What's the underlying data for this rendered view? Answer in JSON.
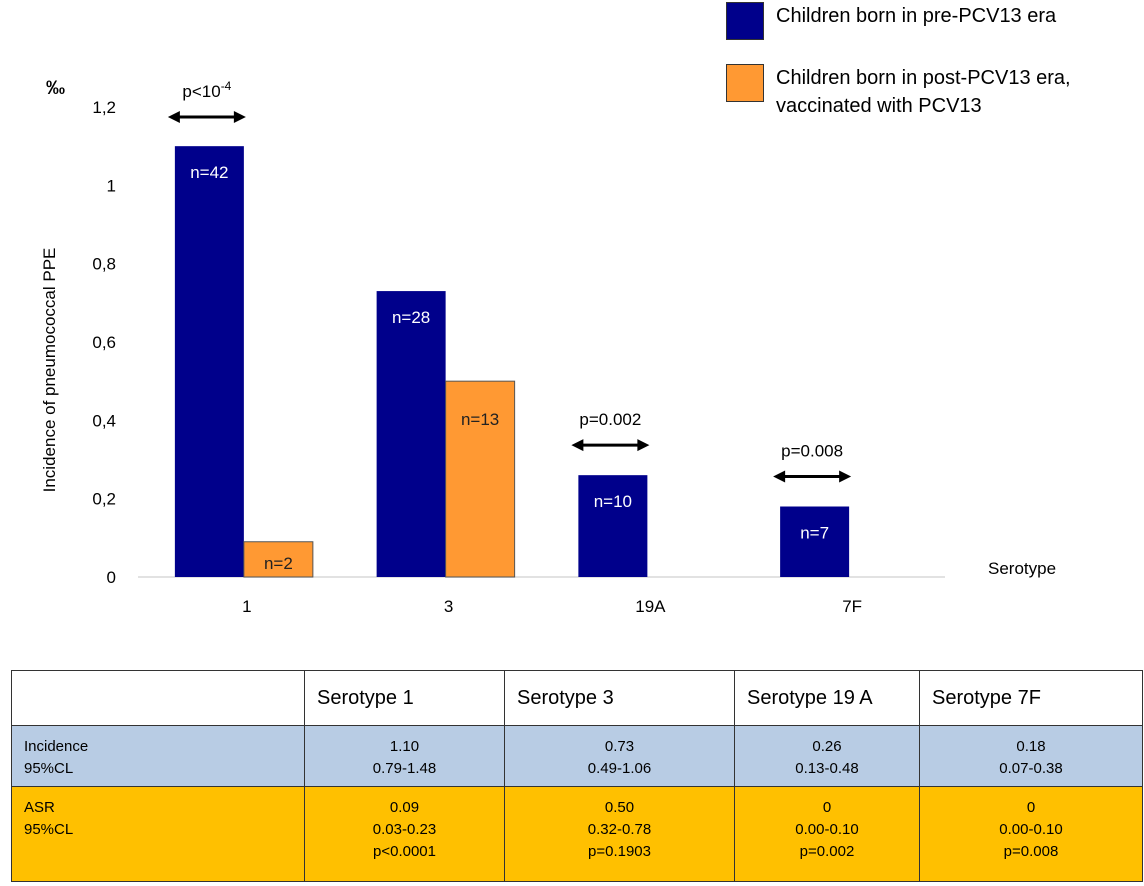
{
  "chart_data": {
    "type": "bar",
    "ylabel": "Incidence of pneumococcal PPE",
    "yunit": "‰",
    "xlabel": "Serotype",
    "ylim": [
      0,
      1.2
    ],
    "yticks": [
      {
        "value": 0,
        "label": "0"
      },
      {
        "value": 0.2,
        "label": "0,2"
      },
      {
        "value": 0.4,
        "label": "0,4"
      },
      {
        "value": 0.6,
        "label": "0,6"
      },
      {
        "value": 0.8,
        "label": "0,8"
      },
      {
        "value": 1,
        "label": "1"
      },
      {
        "value": 1.2,
        "label": "1,2"
      }
    ],
    "categories": [
      "1",
      "3",
      "19A",
      "7F"
    ],
    "series": [
      {
        "name": "Children born in pre-PCV13 era",
        "color": "#00008b",
        "values": [
          1.1,
          0.73,
          0.26,
          0.18
        ],
        "labels": [
          "n=42",
          "n=28",
          "n=10",
          "n=7"
        ]
      },
      {
        "name": "Children born in post-PCV13 era,\nvaccinated with PCV13",
        "color": "#ff9933",
        "values": [
          0.09,
          0.5,
          0,
          0
        ],
        "labels": [
          "n=2",
          "n=13",
          "",
          ""
        ]
      }
    ],
    "pvalues": [
      {
        "category": "1",
        "base": "p<10",
        "exp": "-4"
      },
      {
        "category": "19A",
        "base": "p=0.002",
        "exp": ""
      },
      {
        "category": "7F",
        "base": "p=0.008",
        "exp": ""
      }
    ],
    "legend_position": "top-right",
    "grid": false
  },
  "table": {
    "headers": [
      "",
      "Serotype 1",
      "Serotype 3",
      "Serotype 19 A",
      "Serotype 7F"
    ],
    "rows": [
      {
        "label": [
          "Incidence",
          "95%CL"
        ],
        "color": "#b8cce4",
        "cells": [
          [
            "1.10",
            "0.79-1.48"
          ],
          [
            "0.73",
            "0.49-1.06"
          ],
          [
            "0.26",
            "0.13-0.48"
          ],
          [
            "0.18",
            "0.07-0.38"
          ]
        ]
      },
      {
        "label": [
          "ASR",
          "95%CL"
        ],
        "color": "#ffc000",
        "cells": [
          [
            "0.09",
            "0.03-0.23",
            "p<0.0001"
          ],
          [
            "0.50",
            "0.32-0.78",
            "p=0.1903"
          ],
          [
            "0",
            "0.00-0.10",
            "p=0.002"
          ],
          [
            "0",
            "0.00-0.10",
            "p=0.008"
          ]
        ]
      }
    ]
  }
}
